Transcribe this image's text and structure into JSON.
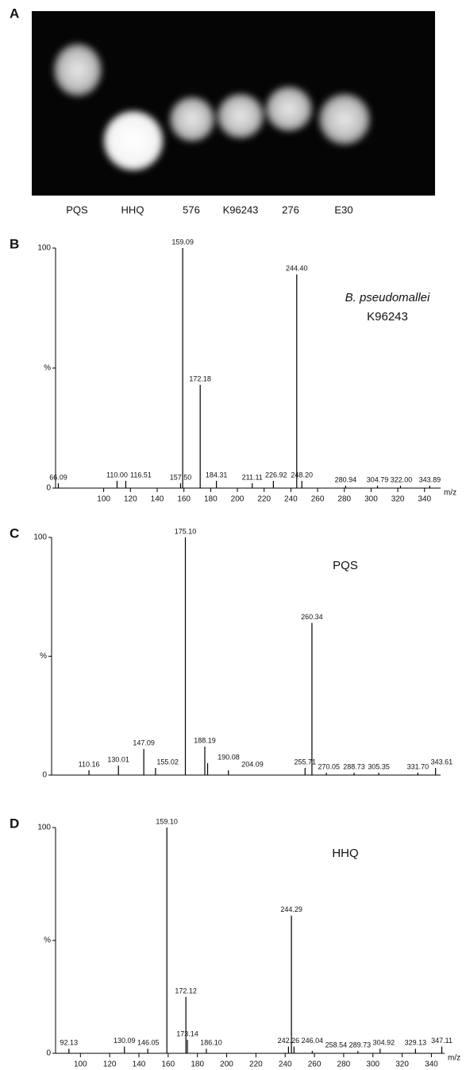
{
  "panel_a": {
    "label": "A",
    "lanes": [
      "PQS",
      "HHQ",
      "576",
      "K96243",
      "276",
      "E30"
    ]
  },
  "chart_data": [
    {
      "type": "spectrum",
      "panel": "B",
      "annotation": [
        "B. pseudomallei",
        "K96243"
      ],
      "x": [
        66.09,
        110.0,
        116.51,
        157.5,
        159.09,
        172.18,
        184.31,
        211.11,
        226.92,
        244.4,
        248.2,
        280.94,
        304.79,
        322.0,
        343.89
      ],
      "x_labels": [
        "66.09",
        "110.00",
        "116.51",
        "157.50",
        "159.09",
        "172.18",
        "184.31",
        "211.11",
        "226.92",
        "244.40",
        "248.20",
        "280.94",
        "304.79",
        "322.00",
        "343.89"
      ],
      "values": [
        2,
        3,
        3,
        2,
        100,
        43,
        3,
        2,
        3,
        89,
        3,
        1,
        1,
        1,
        1
      ],
      "xlim": [
        64,
        352
      ],
      "ylim": [
        0,
        100
      ],
      "xticks": [
        100,
        120,
        140,
        160,
        180,
        200,
        220,
        240,
        260,
        280,
        300,
        320,
        340
      ],
      "yticks": [
        0,
        {
          "value": 50,
          "label": "%"
        },
        100
      ],
      "xlabel": "m/z",
      "color": "#000000"
    },
    {
      "type": "spectrum",
      "panel": "C",
      "annotation": [
        "PQS"
      ],
      "x": [
        110.16,
        130.01,
        147.09,
        155.02,
        175.1,
        188.19,
        190.08,
        204.09,
        255.71,
        260.34,
        270.05,
        288.73,
        305.35,
        331.7,
        343.61
      ],
      "x_labels": [
        "110.16",
        "130.01",
        "147.09",
        "155.02",
        "175.10",
        "188.19",
        "190.08",
        "204.09",
        "255.71",
        "260.34",
        "270.05",
        "288.73",
        "305.35",
        "331.70",
        "343.61"
      ],
      "values": [
        2,
        4,
        11,
        3,
        100,
        12,
        5,
        2,
        3,
        64,
        1,
        1,
        1,
        1,
        3
      ],
      "xlim": [
        85,
        347
      ],
      "ylim": [
        0,
        100
      ],
      "xticks": [],
      "yticks": [
        0,
        {
          "value": 50,
          "label": "%"
        },
        100
      ],
      "color": "#000000"
    },
    {
      "type": "spectrum",
      "panel": "D",
      "annotation": [
        "HHQ"
      ],
      "x": [
        92.13,
        130.09,
        146.05,
        159.1,
        172.12,
        173.14,
        186.1,
        242.26,
        244.29,
        246.04,
        258.54,
        289.73,
        304.92,
        329.13,
        347.11
      ],
      "x_labels": [
        "92.13",
        "130.09",
        "146.05",
        "159.10",
        "172.12",
        "173.14",
        "186.10",
        "242.26",
        "244.29",
        "246.04",
        "258.54",
        "289.73",
        "304.92",
        "329.13",
        "347.11"
      ],
      "values": [
        2,
        3,
        2,
        100,
        25,
        6,
        2,
        3,
        61,
        3,
        1,
        1,
        2,
        2,
        3
      ],
      "xlim": [
        83,
        349
      ],
      "ylim": [
        0,
        100
      ],
      "xticks": [
        100,
        120,
        140,
        160,
        180,
        200,
        220,
        240,
        260,
        280,
        300,
        320,
        340
      ],
      "yticks": [
        0,
        {
          "value": 50,
          "label": "%"
        },
        100
      ],
      "xlabel": "m/z",
      "color": "#000000"
    }
  ]
}
